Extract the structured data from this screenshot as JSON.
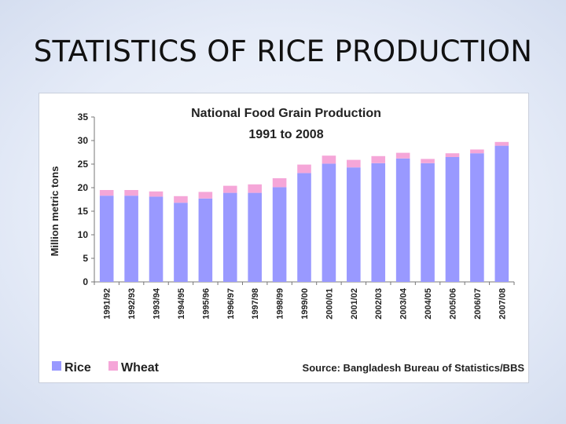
{
  "slide": {
    "title": "STATISTICS OF RICE PRODUCTION"
  },
  "chart_data": {
    "type": "bar",
    "stacked": true,
    "title": "National Food Grain Production",
    "subtitle": "1991 to 2008",
    "xlabel": "",
    "ylabel": "Million metric tons",
    "ylim": [
      0,
      35
    ],
    "yticks": [
      0,
      5,
      10,
      15,
      20,
      25,
      30,
      35
    ],
    "grid": false,
    "legend_position": "bottom-left",
    "source": "Source: Bangladesh Bureau of Statistics/BBS",
    "categories": [
      "1991/92",
      "1992/93",
      "1993/94",
      "1994/95",
      "1995/96",
      "1996/97",
      "1997/98",
      "1998/99",
      "1999/00",
      "2000/01",
      "2001/02",
      "2002/03",
      "2003/04",
      "2004/05",
      "2005/06",
      "2006/07",
      "2007/08"
    ],
    "series": [
      {
        "name": "Rice",
        "color": "#9999ff",
        "values": [
          18.3,
          18.3,
          18.1,
          16.8,
          17.7,
          18.9,
          18.9,
          20.1,
          23.1,
          25.1,
          24.3,
          25.2,
          26.2,
          25.2,
          26.5,
          27.3,
          28.9
        ]
      },
      {
        "name": "Wheat",
        "color": "#f5a6d8",
        "values": [
          1.2,
          1.2,
          1.1,
          1.4,
          1.4,
          1.5,
          1.8,
          1.9,
          1.8,
          1.7,
          1.6,
          1.5,
          1.2,
          0.9,
          0.8,
          0.8,
          0.8
        ]
      }
    ]
  }
}
